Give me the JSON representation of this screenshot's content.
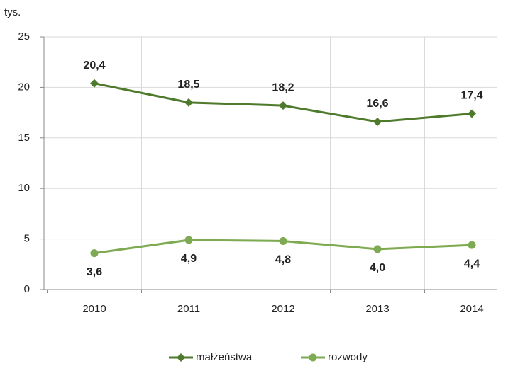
{
  "chart_data": {
    "type": "line",
    "y_label": "tys.",
    "categories": [
      "2010",
      "2011",
      "2012",
      "2013",
      "2014"
    ],
    "series": [
      {
        "name": "małżeństwa",
        "color": "#4e7a2c",
        "marker": "diamond",
        "label_position": "above",
        "values": [
          20.4,
          18.5,
          18.2,
          16.6,
          17.4
        ],
        "value_labels": [
          "20,4",
          "18,5",
          "18,2",
          "16,6",
          "17,4"
        ]
      },
      {
        "name": "rozwody",
        "color": "#7eab52",
        "marker": "circle",
        "label_position": "below",
        "values": [
          3.6,
          4.9,
          4.8,
          4.0,
          4.4
        ],
        "value_labels": [
          "3,6",
          "4,9",
          "4,8",
          "4,0",
          "4,4"
        ]
      }
    ],
    "ylim": [
      0,
      25
    ],
    "yticks": [
      0,
      5,
      10,
      15,
      20,
      25
    ],
    "grid": true,
    "legend": "bottom"
  }
}
